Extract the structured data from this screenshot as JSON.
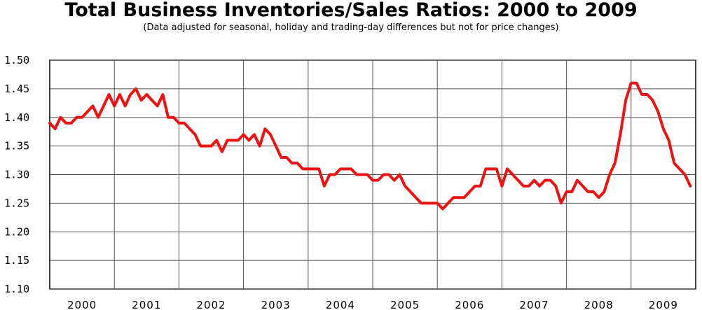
{
  "chart_data": {
    "type": "line",
    "title": "Total Business Inventories/Sales Ratios: 2000 to 2009",
    "subtitle": "(Data adjusted for seasonal, holiday and trading-day differences but not for price changes)",
    "xlabel": "",
    "ylabel": "",
    "ylim": [
      1.1,
      1.5
    ],
    "y_ticks": [
      "1.50",
      "1.45",
      "1.40",
      "1.35",
      "1.30",
      "1.25",
      "1.20",
      "1.15",
      "1.10"
    ],
    "x_ticks": [
      "2000",
      "2001",
      "2002",
      "2003",
      "2004",
      "2005",
      "2006",
      "2007",
      "2008",
      "2009"
    ],
    "grid": true,
    "line_color": "#ee1111",
    "series": [
      {
        "start": "2000-01",
        "frequency": "monthly",
        "values": [
          1.39,
          1.38,
          1.4,
          1.39,
          1.39,
          1.4,
          1.4,
          1.41,
          1.42,
          1.4,
          1.42,
          1.44,
          1.42,
          1.44,
          1.42,
          1.44,
          1.45,
          1.43,
          1.44,
          1.43,
          1.42,
          1.44,
          1.4,
          1.4,
          1.39,
          1.39,
          1.38,
          1.37,
          1.35,
          1.35,
          1.35,
          1.36,
          1.34,
          1.36,
          1.36,
          1.36,
          1.37,
          1.36,
          1.37,
          1.35,
          1.38,
          1.37,
          1.35,
          1.33,
          1.33,
          1.32,
          1.32,
          1.31,
          1.31,
          1.31,
          1.31,
          1.28,
          1.3,
          1.3,
          1.31,
          1.31,
          1.31,
          1.3,
          1.3,
          1.3,
          1.29,
          1.29,
          1.3,
          1.3,
          1.29,
          1.3,
          1.28,
          1.27,
          1.26,
          1.25,
          1.25,
          1.25,
          1.25,
          1.24,
          1.25,
          1.26,
          1.26,
          1.26,
          1.27,
          1.28,
          1.28,
          1.31,
          1.31,
          1.31,
          1.28,
          1.31,
          1.3,
          1.29,
          1.28,
          1.28,
          1.29,
          1.28,
          1.29,
          1.29,
          1.28,
          1.25,
          1.27,
          1.27,
          1.29,
          1.28,
          1.27,
          1.27,
          1.26,
          1.27,
          1.3,
          1.32,
          1.37,
          1.43,
          1.46,
          1.46,
          1.44,
          1.44,
          1.43,
          1.41,
          1.38,
          1.36,
          1.32,
          1.31,
          1.3,
          1.28
        ]
      }
    ]
  }
}
